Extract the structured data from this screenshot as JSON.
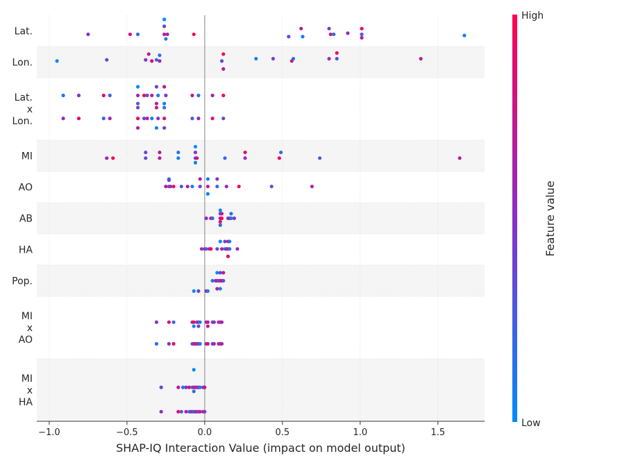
{
  "chart_data": {
    "type": "scatter",
    "title": "",
    "xlabel": "SHAP-IQ Interaction Value (impact on model output)",
    "xlim": [
      -1.08,
      1.8
    ],
    "xticks": [
      -1.0,
      -0.5,
      0.0,
      0.5,
      1.0,
      1.5
    ],
    "xtick_labels": [
      "−1.0",
      "−0.5",
      "0.0",
      "0.5",
      "1.0",
      "1.5"
    ],
    "grid": true,
    "colorbar": {
      "label": "Feature value",
      "high_label": "High",
      "low_label": "Low",
      "high_color": "#ff0052",
      "low_color": "#008bfb"
    },
    "features": [
      {
        "name": "Lat.",
        "name_lines": [
          "Lat."
        ],
        "points": [
          [
            -0.26,
            1.0
          ],
          [
            -0.26,
            0.4
          ],
          [
            -0.26,
            -0.3
          ],
          [
            -0.25,
            -0.7
          ],
          [
            -0.75,
            -0.3
          ],
          [
            -0.48,
            -0.3
          ],
          [
            -0.43,
            -0.3
          ],
          [
            -0.24,
            -0.3
          ],
          [
            -0.07,
            -0.3
          ],
          [
            0.54,
            -0.5
          ],
          [
            0.62,
            0.2
          ],
          [
            0.63,
            -0.5
          ],
          [
            0.8,
            0.2
          ],
          [
            0.81,
            -0.3
          ],
          [
            0.83,
            -0.3
          ],
          [
            0.92,
            -0.2
          ],
          [
            1.01,
            0.2
          ],
          [
            1.01,
            -0.3
          ],
          [
            1.01,
            -0.6
          ],
          [
            1.67,
            -0.4
          ]
        ]
      },
      {
        "name": "Lon.",
        "name_lines": [
          "Lon."
        ],
        "points": [
          [
            -0.95,
            0.1
          ],
          [
            -0.63,
            0.2
          ],
          [
            -0.36,
            0.7
          ],
          [
            -0.29,
            0.6
          ],
          [
            -0.38,
            0.2
          ],
          [
            -0.34,
            0.1
          ],
          [
            -0.31,
            0.2
          ],
          [
            -0.29,
            0.1
          ],
          [
            0.12,
            0.7
          ],
          [
            0.11,
            0.1
          ],
          [
            0.12,
            -0.6
          ],
          [
            0.33,
            0.3
          ],
          [
            0.44,
            0.3
          ],
          [
            0.56,
            0.1
          ],
          [
            0.57,
            0.3
          ],
          [
            0.8,
            0.3
          ],
          [
            0.85,
            0.8
          ],
          [
            0.85,
            0.3
          ],
          [
            1.39,
            0.3
          ]
        ]
      },
      {
        "name": "Lat. x Lon.",
        "name_lines": [
          "Lat.",
          "x",
          "Lon."
        ],
        "points": [
          [
            -0.43,
            0.82
          ],
          [
            -0.31,
            0.82
          ],
          [
            -0.26,
            0.82
          ],
          [
            -0.91,
            0.5
          ],
          [
            -0.81,
            0.5
          ],
          [
            -0.65,
            0.5
          ],
          [
            -0.61,
            0.5
          ],
          [
            -0.43,
            0.5
          ],
          [
            -0.39,
            0.5
          ],
          [
            -0.37,
            0.5
          ],
          [
            -0.34,
            0.5
          ],
          [
            -0.3,
            0.5
          ],
          [
            -0.25,
            0.5
          ],
          [
            -0.08,
            0.5
          ],
          [
            -0.04,
            0.5
          ],
          [
            0.05,
            0.5
          ],
          [
            0.12,
            0.5
          ],
          [
            -0.43,
            0.2
          ],
          [
            -0.31,
            0.2
          ],
          [
            -0.26,
            0.2
          ],
          [
            -0.43,
            0.05
          ],
          [
            -0.31,
            0.05
          ],
          [
            -0.26,
            0.05
          ],
          [
            -0.91,
            -0.35
          ],
          [
            -0.81,
            -0.35
          ],
          [
            -0.65,
            -0.35
          ],
          [
            -0.61,
            -0.35
          ],
          [
            -0.43,
            -0.35
          ],
          [
            -0.39,
            -0.35
          ],
          [
            -0.37,
            -0.35
          ],
          [
            -0.34,
            -0.35
          ],
          [
            -0.3,
            -0.35
          ],
          [
            -0.26,
            -0.35
          ],
          [
            -0.08,
            -0.35
          ],
          [
            -0.04,
            -0.35
          ],
          [
            0.05,
            -0.35
          ],
          [
            0.12,
            -0.35
          ],
          [
            -0.43,
            -0.7
          ],
          [
            -0.31,
            -0.7
          ],
          [
            -0.26,
            -0.7
          ]
        ]
      },
      {
        "name": "MI",
        "name_lines": [
          "MI"
        ],
        "points": [
          [
            -0.06,
            0.8
          ],
          [
            -0.38,
            0.3
          ],
          [
            -0.29,
            0.3
          ],
          [
            -0.17,
            0.3
          ],
          [
            -0.06,
            0.3
          ],
          [
            0.26,
            0.3
          ],
          [
            0.49,
            0.3
          ],
          [
            -0.63,
            -0.2
          ],
          [
            -0.59,
            -0.2
          ],
          [
            -0.38,
            -0.2
          ],
          [
            -0.29,
            -0.2
          ],
          [
            -0.17,
            -0.2
          ],
          [
            -0.06,
            -0.2
          ],
          [
            -0.05,
            -0.2
          ],
          [
            0.13,
            -0.2
          ],
          [
            0.26,
            -0.2
          ],
          [
            0.48,
            -0.2
          ],
          [
            0.74,
            -0.2
          ],
          [
            1.64,
            -0.2
          ],
          [
            -0.06,
            -0.6
          ]
        ]
      },
      {
        "name": "AO",
        "name_lines": [
          "AO"
        ],
        "points": [
          [
            -0.23,
            0.7
          ],
          [
            -0.23,
            0.6
          ],
          [
            -0.03,
            0.7
          ],
          [
            0.02,
            0.7
          ],
          [
            0.08,
            0.7
          ],
          [
            -0.25,
            0.05
          ],
          [
            -0.23,
            0.05
          ],
          [
            -0.22,
            0.05
          ],
          [
            -0.2,
            0.05
          ],
          [
            -0.15,
            0.05
          ],
          [
            -0.11,
            0.05
          ],
          [
            -0.08,
            0.05
          ],
          [
            -0.03,
            0.05
          ],
          [
            0.02,
            0.05
          ],
          [
            0.08,
            0.05
          ],
          [
            0.14,
            0.05
          ],
          [
            0.22,
            0.05
          ],
          [
            0.43,
            0.05
          ],
          [
            0.69,
            0.05
          ],
          [
            0.02,
            -0.6
          ]
        ]
      },
      {
        "name": "AB",
        "name_lines": [
          "AB"
        ],
        "points": [
          [
            0.1,
            0.7
          ],
          [
            0.1,
            0.4
          ],
          [
            0.11,
            0.4
          ],
          [
            0.17,
            0.4
          ],
          [
            0.01,
            0.0
          ],
          [
            0.04,
            0.0
          ],
          [
            0.05,
            0.0
          ],
          [
            0.1,
            0.0
          ],
          [
            0.11,
            0.0
          ],
          [
            0.15,
            0.0
          ],
          [
            0.16,
            0.0
          ],
          [
            0.17,
            0.0
          ],
          [
            0.19,
            0.0
          ],
          [
            0.1,
            -0.3
          ],
          [
            0.1,
            -0.6
          ]
        ]
      },
      {
        "name": "HA",
        "name_lines": [
          "HA"
        ],
        "points": [
          [
            0.1,
            0.7
          ],
          [
            0.13,
            0.7
          ],
          [
            0.15,
            0.7
          ],
          [
            0.16,
            0.7
          ],
          [
            -0.02,
            0.05
          ],
          [
            0.0,
            0.05
          ],
          [
            0.01,
            0.05
          ],
          [
            0.03,
            0.05
          ],
          [
            0.04,
            0.05
          ],
          [
            0.08,
            0.05
          ],
          [
            0.11,
            0.05
          ],
          [
            0.13,
            0.05
          ],
          [
            0.14,
            0.05
          ],
          [
            0.15,
            0.05
          ],
          [
            0.16,
            0.05
          ],
          [
            0.21,
            0.05
          ],
          [
            0.15,
            -0.6
          ]
        ]
      },
      {
        "name": "Pop.",
        "name_lines": [
          "Pop."
        ],
        "points": [
          [
            0.08,
            0.7
          ],
          [
            0.1,
            0.7
          ],
          [
            0.12,
            0.7
          ],
          [
            0.05,
            0.0
          ],
          [
            0.07,
            0.0
          ],
          [
            0.08,
            0.0
          ],
          [
            0.09,
            0.0
          ],
          [
            0.1,
            0.0
          ],
          [
            0.11,
            0.0
          ],
          [
            0.12,
            0.0
          ],
          [
            0.08,
            -0.7
          ],
          [
            0.1,
            -0.7
          ]
        ]
      },
      {
        "name": "MI x AO",
        "name_lines": [
          "MI",
          "x",
          "AO"
        ],
        "points": [
          [
            -0.07,
            1.35
          ],
          [
            -0.04,
            1.35
          ],
          [
            0.01,
            1.35
          ],
          [
            0.02,
            1.35
          ],
          [
            -0.31,
            0.2
          ],
          [
            -0.23,
            0.2
          ],
          [
            -0.2,
            0.2
          ],
          [
            -0.08,
            0.2
          ],
          [
            -0.07,
            0.2
          ],
          [
            -0.05,
            0.2
          ],
          [
            -0.04,
            0.2
          ],
          [
            -0.03,
            0.2
          ],
          [
            0.01,
            0.2
          ],
          [
            0.02,
            0.2
          ],
          [
            0.05,
            0.2
          ],
          [
            0.06,
            0.2
          ],
          [
            0.09,
            0.2
          ],
          [
            0.1,
            0.2
          ],
          [
            0.11,
            0.2
          ],
          [
            -0.07,
            0.05
          ],
          [
            -0.04,
            0.05
          ],
          [
            0.02,
            0.05
          ],
          [
            -0.31,
            -0.6
          ],
          [
            -0.23,
            -0.6
          ],
          [
            -0.2,
            -0.6
          ],
          [
            -0.08,
            -0.6
          ],
          [
            -0.07,
            -0.6
          ],
          [
            -0.06,
            -0.6
          ],
          [
            -0.05,
            -0.6
          ],
          [
            -0.04,
            -0.6
          ],
          [
            -0.03,
            -0.6
          ],
          [
            0.01,
            -0.6
          ],
          [
            0.02,
            -0.6
          ],
          [
            0.05,
            -0.6
          ],
          [
            0.06,
            -0.6
          ],
          [
            0.09,
            -0.6
          ],
          [
            0.1,
            -0.6
          ],
          [
            0.11,
            -0.6
          ]
        ]
      },
      {
        "name": "MI x HA",
        "name_lines": [
          "MI",
          "x",
          "HA"
        ],
        "points": [
          [
            -0.07,
            0.75
          ],
          [
            -0.28,
            0.1
          ],
          [
            -0.17,
            0.1
          ],
          [
            -0.14,
            0.1
          ],
          [
            -0.12,
            0.1
          ],
          [
            -0.1,
            0.1
          ],
          [
            -0.08,
            0.1
          ],
          [
            -0.07,
            0.1
          ],
          [
            -0.06,
            0.1
          ],
          [
            -0.05,
            0.1
          ],
          [
            -0.04,
            0.1
          ],
          [
            -0.03,
            0.1
          ],
          [
            -0.01,
            0.1
          ],
          [
            0.0,
            0.1
          ],
          [
            -0.07,
            -0.05
          ],
          [
            -0.28,
            -0.8
          ],
          [
            -0.17,
            -0.8
          ],
          [
            -0.15,
            -0.8
          ],
          [
            -0.12,
            -0.8
          ],
          [
            -0.1,
            -0.8
          ],
          [
            -0.09,
            -0.8
          ],
          [
            -0.08,
            -0.8
          ],
          [
            -0.07,
            -0.8
          ],
          [
            -0.06,
            -0.8
          ],
          [
            -0.05,
            -0.8
          ],
          [
            -0.04,
            -0.8
          ],
          [
            -0.03,
            -0.8
          ],
          [
            -0.01,
            -0.8
          ],
          [
            0.0,
            -0.8
          ]
        ]
      }
    ]
  }
}
